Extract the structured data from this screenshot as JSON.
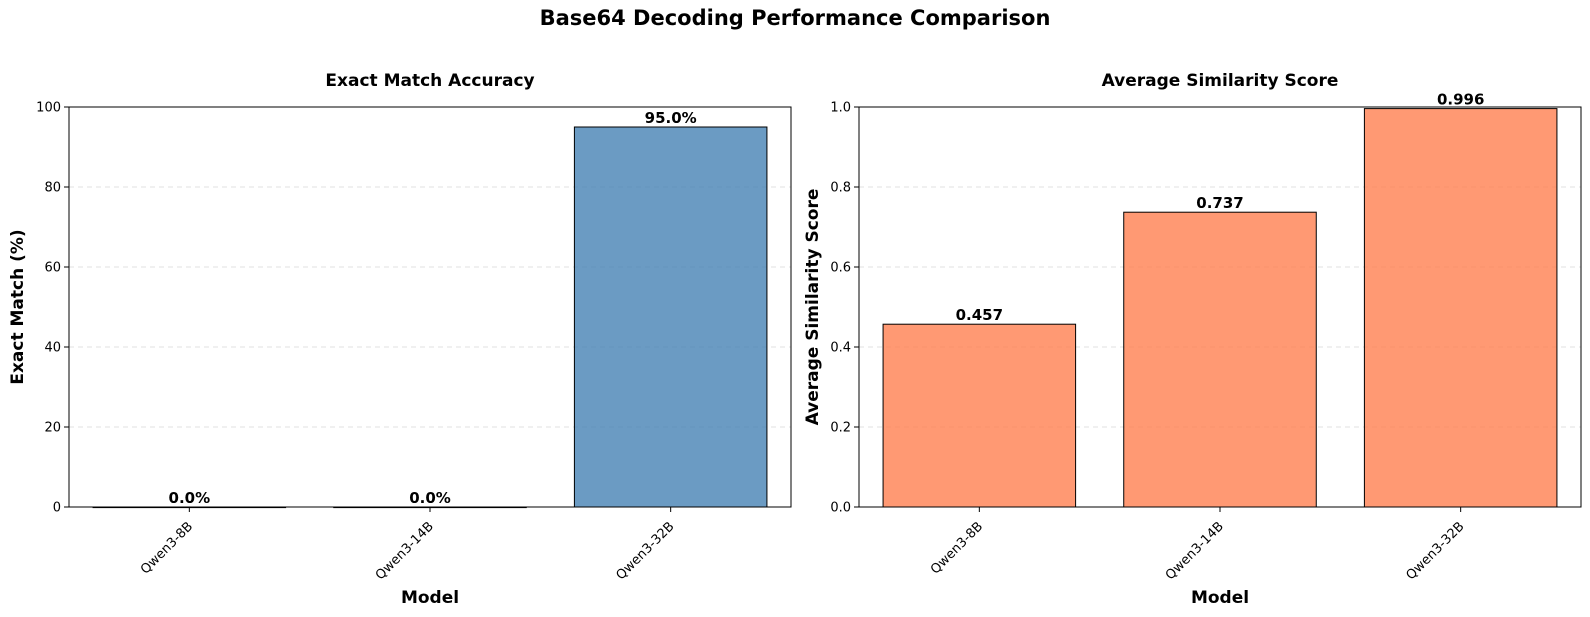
{
  "figure": {
    "title": "Base64 Decoding Performance Comparison"
  },
  "chart_data": [
    {
      "type": "bar",
      "title": "Exact Match Accuracy",
      "xlabel": "Model",
      "ylabel": "Exact Match (%)",
      "categories": [
        "Qwen3-8B",
        "Qwen3-14B",
        "Qwen3-32B"
      ],
      "values": [
        0.0,
        0.0,
        95.0
      ],
      "value_labels": [
        "0.0%",
        "0.0%",
        "95.0%"
      ],
      "ylim": [
        0,
        100
      ],
      "yticks": [
        0,
        20,
        40,
        60,
        80,
        100
      ],
      "ytick_labels": [
        "0",
        "20",
        "40",
        "60",
        "80",
        "100"
      ],
      "grid": "y-dashed",
      "bar_color": "#4682b4"
    },
    {
      "type": "bar",
      "title": "Average Similarity Score",
      "xlabel": "Model",
      "ylabel": "Average Similarity Score",
      "categories": [
        "Qwen3-8B",
        "Qwen3-14B",
        "Qwen3-32B"
      ],
      "values": [
        0.457,
        0.737,
        0.996
      ],
      "value_labels": [
        "0.457",
        "0.737",
        "0.996"
      ],
      "ylim": [
        0,
        1.0
      ],
      "yticks": [
        0.0,
        0.2,
        0.4,
        0.6,
        0.8,
        1.0
      ],
      "ytick_labels": [
        "0.0",
        "0.2",
        "0.4",
        "0.6",
        "0.8",
        "1.0"
      ],
      "grid": "y-dashed",
      "bar_color": "#ff7f50"
    }
  ]
}
